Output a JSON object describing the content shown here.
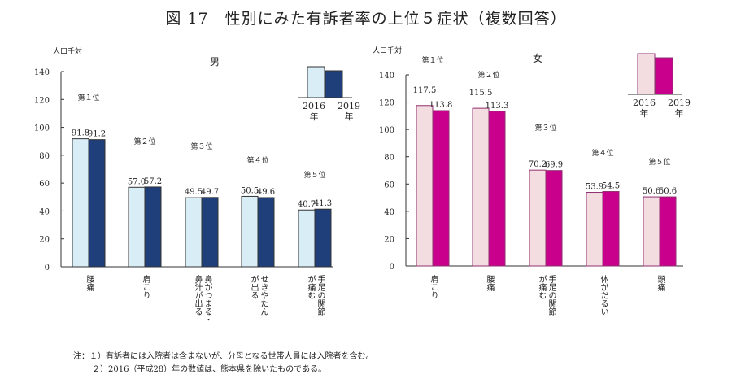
{
  "title": "図 17　性別にみた有訴者率の上位５症状（複数回答）",
  "chart_data": [
    {
      "type": "bar",
      "panel_title": "男",
      "ylabel": "人口千対",
      "ylim": [
        0,
        140
      ],
      "yticks": [
        0,
        20,
        40,
        60,
        80,
        100,
        120,
        140
      ],
      "grid": false,
      "legend_placement": "top-right",
      "categories": [
        "腰痛",
        "肩こり",
        "鼻がつまる・\n鼻汁が出る",
        "せきやたん\nが出る",
        "手足の関節\nが痛む"
      ],
      "ranks": [
        "第１位",
        "第２位",
        "第３位",
        "第４位",
        "第５位"
      ],
      "series": [
        {
          "name": "2016\n年",
          "color": "#d9edf6",
          "values": [
            91.8,
            57.0,
            49.5,
            50.5,
            40.7
          ]
        },
        {
          "name": "2019\n年",
          "color": "#1f3f7a",
          "values": [
            91.2,
            57.2,
            49.7,
            49.6,
            41.3
          ]
        }
      ],
      "value_labels": [
        [
          "91.8",
          "57.0",
          "49.5",
          "50.5",
          "40.7"
        ],
        [
          "91.2",
          "57.2",
          "49.7",
          "49.6",
          "41.3"
        ]
      ],
      "legend": [
        "2016",
        "年",
        "2019",
        "年"
      ]
    },
    {
      "type": "bar",
      "panel_title": "女",
      "ylabel": "人口千対",
      "ylim": [
        0,
        140
      ],
      "yticks": [
        0,
        20,
        40,
        60,
        80,
        100,
        120,
        140
      ],
      "grid": false,
      "legend_placement": "top-right",
      "categories": [
        "肩こり",
        "腰痛",
        "手足の関節\nが痛む",
        "体がだるい",
        "頭痛"
      ],
      "ranks": [
        "第１位",
        "第２位",
        "第３位",
        "第４位",
        "第５位"
      ],
      "series": [
        {
          "name": "2016\n年",
          "color": "#f3dde0",
          "values": [
            117.5,
            115.5,
            70.2,
            53.9,
            50.6
          ]
        },
        {
          "name": "2019\n年",
          "color": "#c8008c",
          "values": [
            113.8,
            113.3,
            69.9,
            54.5,
            50.6
          ]
        }
      ],
      "value_labels": [
        [
          "117.5",
          "115.5",
          "70.2",
          "53.9",
          "50.6"
        ],
        [
          "113.8",
          "113.3",
          "69.9",
          "54.5",
          "50.6"
        ]
      ],
      "legend": [
        "2016",
        "年",
        "2019",
        "年"
      ]
    }
  ],
  "notes": [
    "注：１）有訴者には入院者は含まないが、分母となる世帯人員には入院者を含む。",
    "２）2016（平成28）年の数値は、熊本県を除いたものである。"
  ]
}
